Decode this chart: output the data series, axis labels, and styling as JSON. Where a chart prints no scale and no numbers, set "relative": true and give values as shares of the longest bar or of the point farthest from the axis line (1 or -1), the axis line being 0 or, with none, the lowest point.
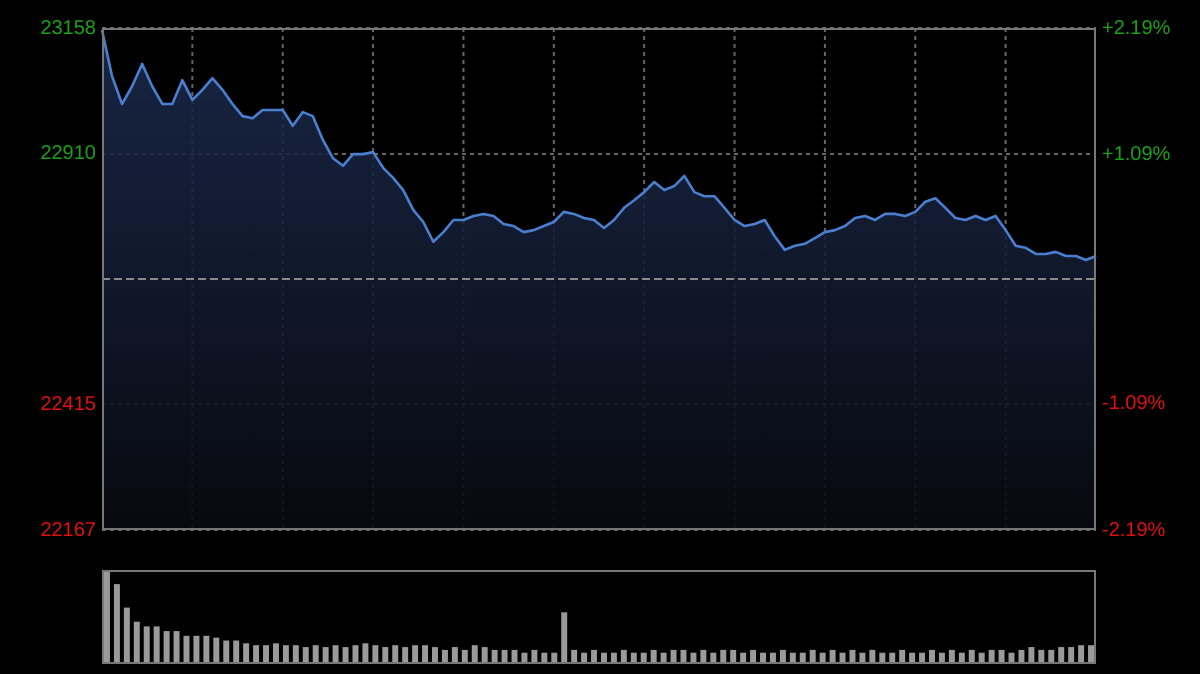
{
  "chart_data": [
    {
      "type": "area",
      "categories": [
        null,
        null,
        null,
        null,
        null,
        null,
        null,
        null,
        null,
        null,
        null,
        null,
        null,
        null,
        null,
        null,
        null,
        null,
        null,
        null,
        null,
        null,
        null,
        null,
        null,
        null,
        null,
        null,
        null,
        null,
        null,
        null,
        null,
        null,
        null,
        null,
        null,
        null,
        null,
        null,
        null,
        null,
        null,
        null,
        null,
        null,
        null,
        null,
        null,
        null,
        null,
        null,
        null,
        null,
        null,
        null,
        null,
        null,
        null,
        null,
        null,
        null,
        null,
        null,
        null,
        null,
        null,
        null,
        null,
        null,
        null,
        null,
        null,
        null,
        null,
        null,
        null,
        null,
        null,
        null,
        null,
        null,
        null,
        null,
        null,
        null,
        null,
        null,
        null,
        null,
        null,
        null,
        null,
        null,
        null,
        null,
        null,
        null,
        null,
        null
      ],
      "series": [
        {
          "color": "#4a7fd0",
          "values": [
            23154,
            23063,
            23008,
            23043,
            23087,
            23043,
            23008,
            23008,
            23055,
            23016,
            23036,
            23059,
            23036,
            23008,
            22984,
            22980,
            22996,
            22996,
            22996,
            22965,
            22992,
            22984,
            22937,
            22901,
            22886,
            22909,
            22909,
            22913,
            22882,
            22862,
            22838,
            22799,
            22775,
            22736,
            22755,
            22779,
            22779,
            22787,
            22791,
            22787,
            22771,
            22767,
            22755,
            22759,
            22767,
            22775,
            22795,
            22791,
            22783,
            22779,
            22763,
            22779,
            22803,
            22818,
            22834,
            22854,
            22838,
            22846,
            22866,
            22834,
            22826,
            22826,
            22803,
            22779,
            22767,
            22771,
            22779,
            22747,
            22720,
            22728,
            22732,
            22743,
            22755,
            22759,
            22767,
            22783,
            22787,
            22779,
            22791,
            22791,
            22787,
            22795,
            22815,
            22822,
            22803,
            22783,
            22779,
            22787,
            22779,
            22787,
            22759,
            22728,
            22724,
            22712,
            22712,
            22716,
            22708,
            22708,
            22700,
            22708
          ]
        }
      ],
      "ylim": [
        22167,
        23158
      ],
      "yticks": [
        22167,
        22415,
        22910,
        23158
      ],
      "y2lim": [
        -2.19,
        2.19
      ],
      "y2ticks": [
        {
          "value": -2.19,
          "label": "-2.19%"
        },
        {
          "value": -1.09,
          "label": "-1.09%"
        },
        {
          "value": 1.09,
          "label": "+1.09%"
        },
        {
          "value": 2.19,
          "label": "+2.19%"
        }
      ],
      "ref_lines": [
        {
          "axis": "y",
          "value": 22662.5
        }
      ],
      "grid": true
    },
    {
      "type": "bar",
      "relative": true,
      "categories": [
        null,
        null,
        null,
        null,
        null,
        null,
        null,
        null,
        null,
        null,
        null,
        null,
        null,
        null,
        null,
        null,
        null,
        null,
        null,
        null,
        null,
        null,
        null,
        null,
        null,
        null,
        null,
        null,
        null,
        null,
        null,
        null,
        null,
        null,
        null,
        null,
        null,
        null,
        null,
        null,
        null,
        null,
        null,
        null,
        null,
        null,
        null,
        null,
        null,
        null,
        null,
        null,
        null,
        null,
        null,
        null,
        null,
        null,
        null,
        null,
        null,
        null,
        null,
        null,
        null,
        null,
        null,
        null,
        null,
        null,
        null,
        null,
        null,
        null,
        null,
        null,
        null,
        null,
        null,
        null,
        null,
        null,
        null,
        null,
        null,
        null,
        null,
        null,
        null,
        null,
        null,
        null,
        null,
        null,
        null,
        null,
        null,
        null,
        null,
        null
      ],
      "series": [
        {
          "color": "#9a9a9a",
          "values": [
            1,
            0.85,
            0.6,
            0.45,
            0.4,
            0.4,
            0.35,
            0.35,
            0.3,
            0.3,
            0.3,
            0.28,
            0.25,
            0.25,
            0.22,
            0.2,
            0.2,
            0.22,
            0.2,
            0.2,
            0.18,
            0.2,
            0.18,
            0.2,
            0.18,
            0.2,
            0.22,
            0.2,
            0.18,
            0.2,
            0.18,
            0.2,
            0.2,
            0.18,
            0.15,
            0.18,
            0.15,
            0.2,
            0.18,
            0.15,
            0.15,
            0.15,
            0.12,
            0.15,
            0.12,
            0.12,
            0.55,
            0.15,
            0.12,
            0.15,
            0.12,
            0.12,
            0.15,
            0.12,
            0.12,
            0.15,
            0.12,
            0.15,
            0.15,
            0.12,
            0.15,
            0.12,
            0.15,
            0.15,
            0.12,
            0.15,
            0.12,
            0.12,
            0.15,
            0.12,
            0.12,
            0.15,
            0.12,
            0.15,
            0.12,
            0.15,
            0.12,
            0.15,
            0.12,
            0.12,
            0.15,
            0.12,
            0.12,
            0.15,
            0.12,
            0.15,
            0.12,
            0.15,
            0.12,
            0.15,
            0.15,
            0.12,
            0.15,
            0.18,
            0.15,
            0.15,
            0.18,
            0.18,
            0.2,
            0.2
          ]
        }
      ]
    }
  ]
}
